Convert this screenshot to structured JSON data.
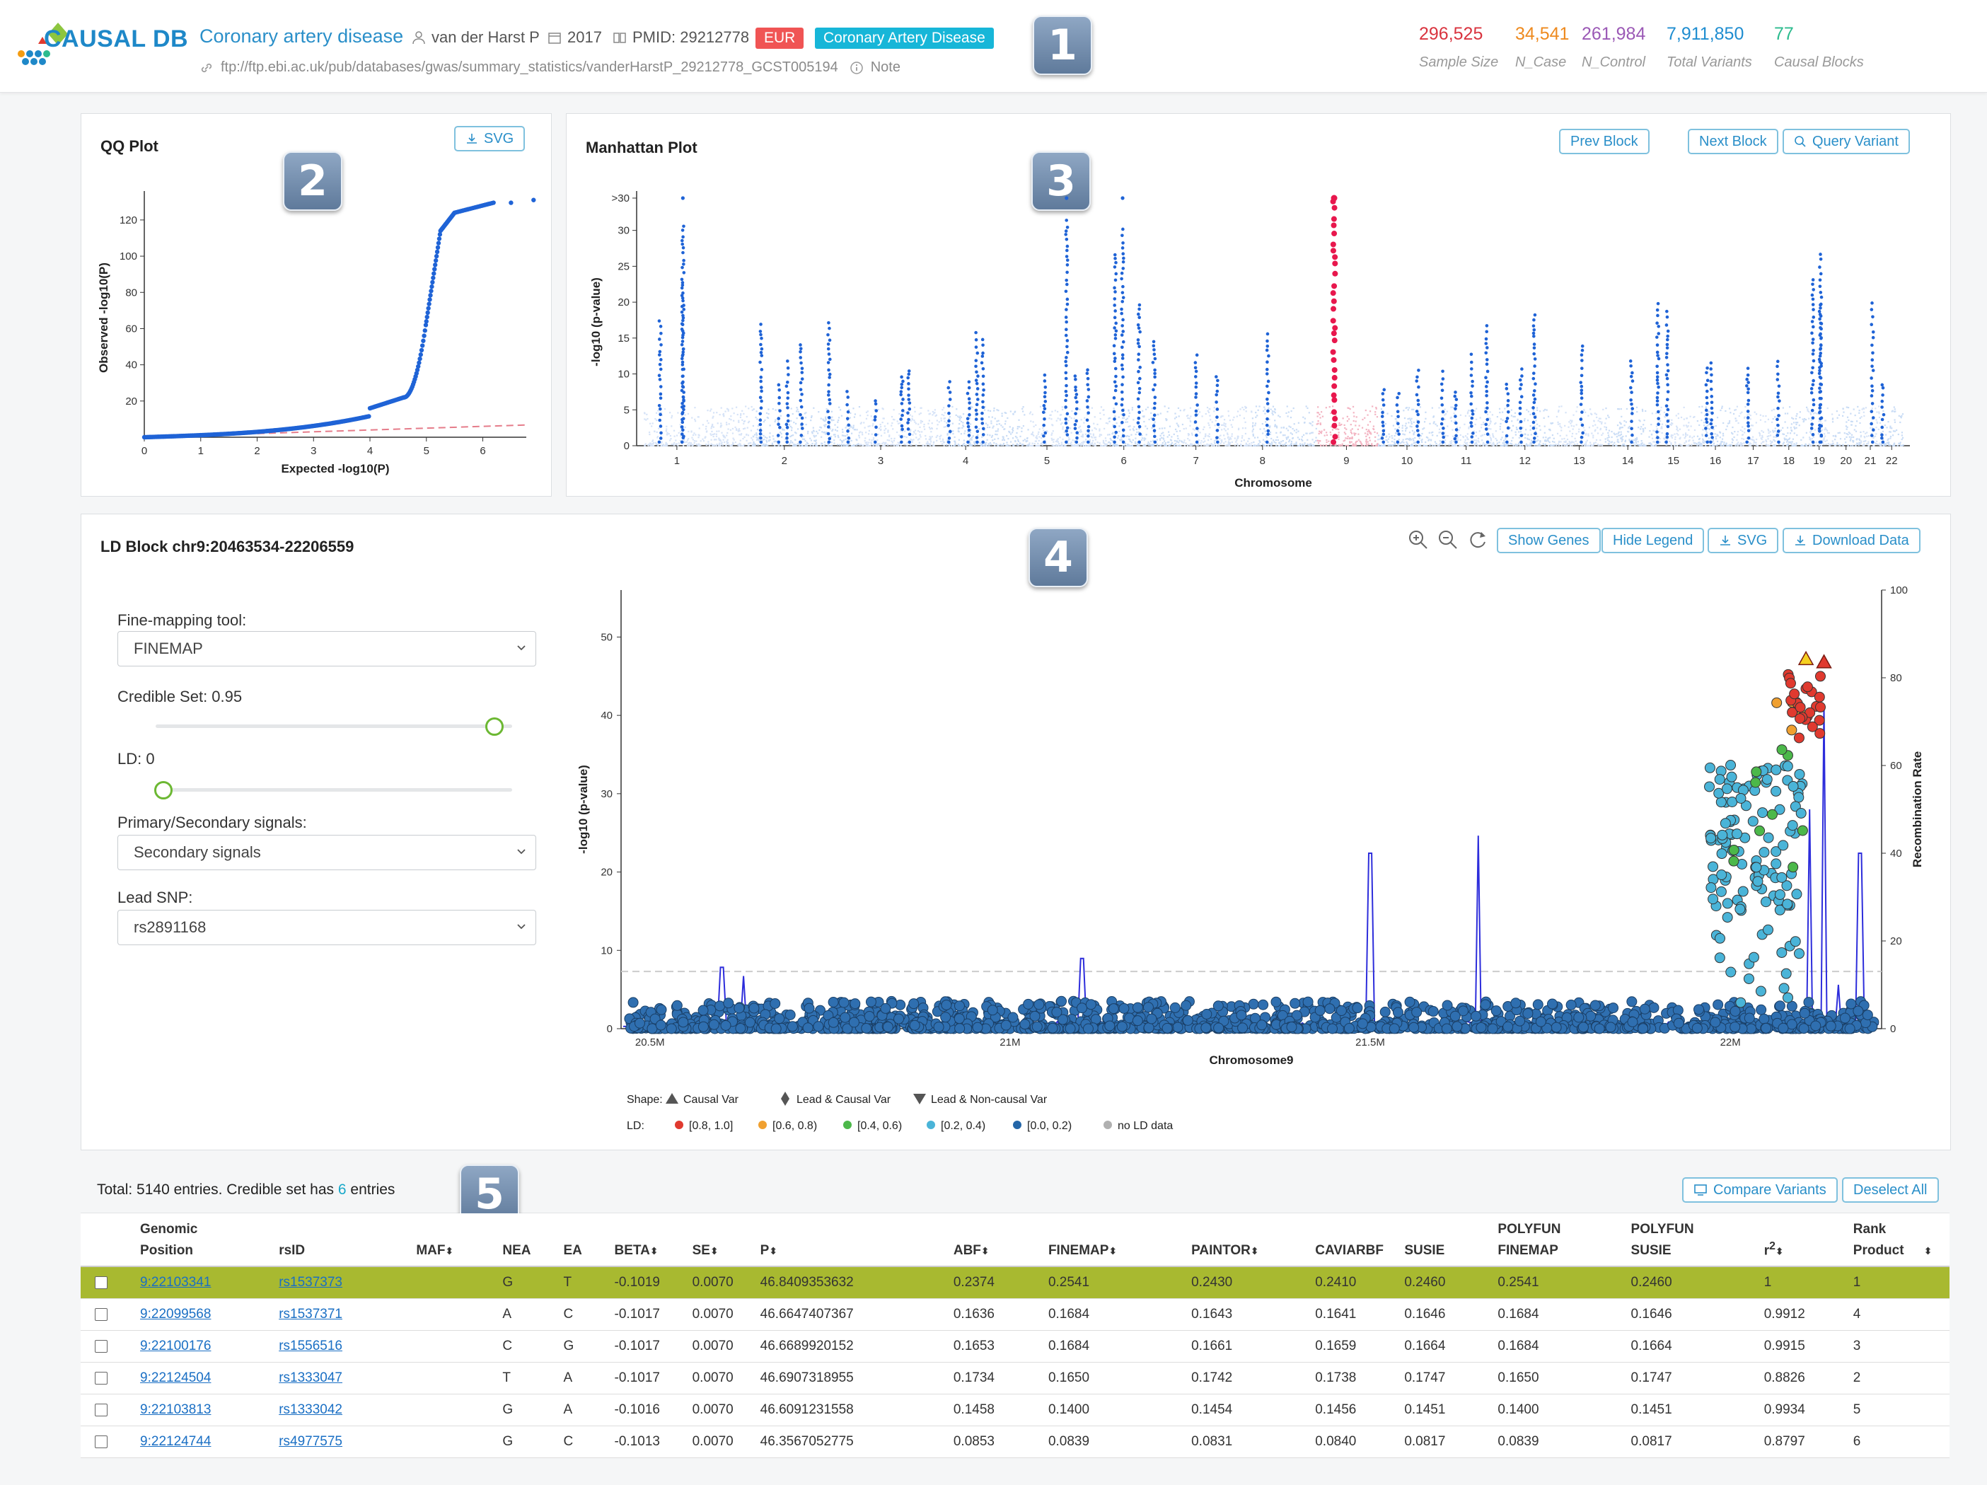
{
  "header": {
    "logo_text": "CAUSAL DB",
    "trait": "Coronary artery disease",
    "author": "van der Harst P",
    "year": "2017",
    "pmid": "PMID: 29212778",
    "population_tag": "EUR",
    "category_tag": "Coronary Artery Disease",
    "ftp": "ftp://ftp.ebi.ac.uk/pub/databases/gwas/summary_statistics/vanderHarstP_29212778_GCST005194",
    "note": "Note",
    "stats": [
      {
        "value": "296,525",
        "label": "Sample Size",
        "color": "#d9343f"
      },
      {
        "value": "34,541",
        "label": "N_Case",
        "color": "#ee8a1f"
      },
      {
        "value": "261,984",
        "label": "N_Control",
        "color": "#9b59b6"
      },
      {
        "value": "7,911,850",
        "label": "Total Variants",
        "color": "#1f8dd0"
      },
      {
        "value": "77",
        "label": "Causal Blocks",
        "color": "#2cbb8e"
      }
    ]
  },
  "badges": [
    "1",
    "2",
    "3",
    "4",
    "5"
  ],
  "qq": {
    "title": "QQ Plot",
    "svg_button": "SVG",
    "xlabel": "Expected -log10(P)",
    "ylabel": "Observed -log10(P)",
    "xticks": [
      "0",
      "1",
      "2",
      "3",
      "4",
      "5",
      "6"
    ],
    "yticks": [
      "20",
      "40",
      "60",
      "80",
      "100",
      "120"
    ]
  },
  "manhattan": {
    "title": "Manhattan Plot",
    "buttons": [
      "Prev Block",
      "Next Block",
      "Query Variant"
    ],
    "xlabel": "Chromosome",
    "ylabel": "-log10 (p-value)",
    "yticks": [
      "0",
      "5",
      "10",
      "15",
      "20",
      "25",
      "30",
      ">30"
    ],
    "chromosomes": [
      "1",
      "2",
      "3",
      "4",
      "5",
      "6",
      "7",
      "8",
      "9",
      "10",
      "11",
      "12",
      "13",
      "14",
      "15",
      "16",
      "17",
      "18",
      "19",
      "20",
      "21",
      "22"
    ]
  },
  "ld": {
    "title": "LD Block chr9:20463534-22206559",
    "buttons": [
      "Show Genes",
      "Hide Legend",
      "SVG",
      "Download Data"
    ],
    "form": {
      "tool_label": "Fine-mapping tool:",
      "tool_value": "FINEMAP",
      "credible_label": "Credible Set: 0.95",
      "credible_value": 0.95,
      "ld_label": "LD: 0",
      "ld_value": 0,
      "signal_label": "Primary/Secondary signals:",
      "signal_value": "Secondary signals",
      "lead_label": "Lead SNP:",
      "lead_value": "rs2891168"
    },
    "xlabel": "Chromosome9",
    "ylabel": "-log10 (p-value)",
    "ylabel_right": "Recombination Rate",
    "xticks": [
      "20.5M",
      "21M",
      "21.5M",
      "22M"
    ],
    "yticks": [
      "0",
      "10",
      "20",
      "30",
      "40",
      "50"
    ],
    "yticks_right": [
      "0",
      "20",
      "40",
      "60",
      "80",
      "100"
    ],
    "legend": {
      "shape_label": "Shape:",
      "shapes": [
        "Causal Var",
        "Lead & Causal Var",
        "Lead & Non-causal Var"
      ],
      "ld_label": "LD:",
      "ld_bins": [
        {
          "label": "[0.8, 1.0]",
          "color": "#e03a2f"
        },
        {
          "label": "[0.6, 0.8)",
          "color": "#f0a030"
        },
        {
          "label": "[0.4, 0.6)",
          "color": "#4cb84a"
        },
        {
          "label": "[0.2, 0.4)",
          "color": "#4ab4d8"
        },
        {
          "label": "[0.0, 0.2)",
          "color": "#2466a8"
        },
        {
          "label": "no LD data",
          "color": "#b0b0b0"
        }
      ]
    }
  },
  "table": {
    "summary_prefix": "Total: 5140 entries. Credible set has",
    "summary_count": "6",
    "summary_suffix": "entries",
    "compare_button": "Compare Variants",
    "deselect_button": "Deselect All",
    "columns": [
      "Genomic Position",
      "rsID",
      "MAF",
      "NEA",
      "EA",
      "BETA",
      "SE",
      "P",
      "ABF",
      "FINEMAP",
      "PAINTOR",
      "CAVIARBF",
      "SUSIE",
      "POLYFUN FINEMAP",
      "POLYFUN SUSIE",
      "r2",
      "Rank Product"
    ],
    "rows": [
      [
        "9:22103341",
        "rs1537373",
        "",
        "G",
        "T",
        "-0.1019",
        "0.0070",
        "46.8409353632",
        "0.2374",
        "0.2541",
        "0.2430",
        "0.2410",
        "0.2460",
        "0.2541",
        "0.2460",
        "1",
        "1"
      ],
      [
        "9:22099568",
        "rs1537371",
        "",
        "A",
        "C",
        "-0.1017",
        "0.0070",
        "46.6647407367",
        "0.1636",
        "0.1684",
        "0.1643",
        "0.1641",
        "0.1646",
        "0.1684",
        "0.1646",
        "0.9912",
        "4"
      ],
      [
        "9:22100176",
        "rs1556516",
        "",
        "C",
        "G",
        "-0.1017",
        "0.0070",
        "46.6689920152",
        "0.1653",
        "0.1684",
        "0.1661",
        "0.1659",
        "0.1664",
        "0.1684",
        "0.1664",
        "0.9915",
        "3"
      ],
      [
        "9:22124504",
        "rs1333047",
        "",
        "T",
        "A",
        "-0.1017",
        "0.0070",
        "46.6907318955",
        "0.1734",
        "0.1650",
        "0.1742",
        "0.1738",
        "0.1747",
        "0.1650",
        "0.1747",
        "0.8826",
        "2"
      ],
      [
        "9:22103813",
        "rs1333042",
        "",
        "G",
        "A",
        "-0.1016",
        "0.0070",
        "46.6091231558",
        "0.1458",
        "0.1400",
        "0.1454",
        "0.1456",
        "0.1451",
        "0.1400",
        "0.1451",
        "0.9934",
        "5"
      ],
      [
        "9:22124744",
        "rs4977575",
        "",
        "G",
        "C",
        "-0.1013",
        "0.0070",
        "46.3567052775",
        "0.0853",
        "0.0839",
        "0.0831",
        "0.0840",
        "0.0817",
        "0.0839",
        "0.0817",
        "0.8797",
        "6"
      ]
    ]
  }
}
